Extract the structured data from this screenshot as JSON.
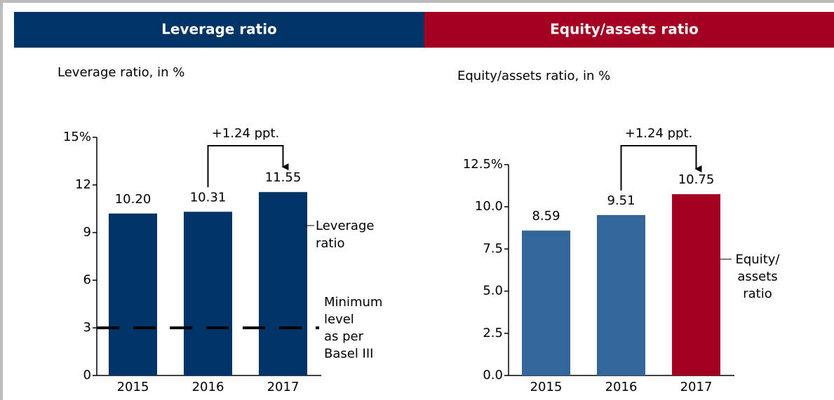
{
  "chart_data": [
    {
      "type": "bar",
      "header": "Leverage ratio",
      "subtitle": "Leverage ratio, in %",
      "categories": [
        "2015",
        "2016",
        "2017"
      ],
      "values": [
        10.2,
        10.31,
        11.55
      ],
      "value_labels": [
        "10.20",
        "10.31",
        "11.55"
      ],
      "colors": [
        "#003366",
        "#003366",
        "#003366"
      ],
      "header_color": "#003366",
      "ylim": [
        0,
        15
      ],
      "yticks": [
        0,
        3,
        6,
        9,
        12,
        {
          "value": 15,
          "label": "15%"
        }
      ],
      "annotation": "+1.24 ppt.",
      "series_label": [
        "Leverage",
        "ratio"
      ],
      "reference_line": {
        "value": 3,
        "label": [
          "Minimum",
          "level",
          "as per",
          "Basel III"
        ]
      }
    },
    {
      "type": "bar",
      "header": "Equity/assets ratio",
      "subtitle": "Equity/assets ratio, in %",
      "categories": [
        "2015",
        "2016",
        "2017"
      ],
      "values": [
        8.59,
        9.51,
        10.75
      ],
      "colors": [
        "#336699",
        "#336699",
        "#a50021"
      ],
      "header_color": "#a50021",
      "ylim": [
        0,
        12.5
      ],
      "yticks": [
        {
          "value": 0,
          "label": "0.0"
        },
        2.5,
        {
          "value": 5,
          "label": "5.0"
        },
        7.5,
        {
          "value": 10,
          "label": "10.0"
        },
        {
          "value": 12.5,
          "label": "12.5%"
        }
      ],
      "annotation": "+1.24 ppt.",
      "series_label": [
        "Equity/",
        "assets",
        "ratio"
      ]
    }
  ]
}
